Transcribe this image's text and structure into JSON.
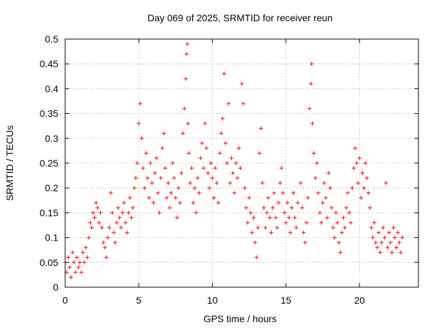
{
  "chart_data": {
    "type": "scatter",
    "title": "Day 069 of 2025, SRMTID for receiver reun",
    "xlabel": "GPS time / hours",
    "ylabel": "SRMTID / TECUs",
    "xlim": [
      0,
      24
    ],
    "ylim": [
      0,
      0.5
    ],
    "x_ticks": [
      0,
      5,
      10,
      15,
      20
    ],
    "x_tick_labels": [
      "0",
      "5",
      "10",
      "15",
      "20"
    ],
    "y_ticks": [
      0,
      0.05,
      0.1,
      0.15,
      0.2,
      0.25,
      0.3,
      0.35,
      0.4,
      0.45,
      0.5
    ],
    "y_tick_labels": [
      "0",
      "0.05",
      "0.1",
      "0.15",
      "0.2",
      "0.25",
      "0.3",
      "0.35",
      "0.4",
      "0.45",
      "0.5"
    ],
    "grid": true,
    "marker": "+",
    "color": "#ff0000",
    "data_span_hours": [
      0,
      22.9
    ],
    "series": [
      {
        "name": "SRMTID",
        "points": [
          [
            0.0,
            0.05
          ],
          [
            0.1,
            0.03
          ],
          [
            0.2,
            0.06
          ],
          [
            0.3,
            0.04
          ],
          [
            0.4,
            0.02
          ],
          [
            0.5,
            0.07
          ],
          [
            0.6,
            0.05
          ],
          [
            0.7,
            0.03
          ],
          [
            0.8,
            0.06
          ],
          [
            0.9,
            0.04
          ],
          [
            1.0,
            0.05
          ],
          [
            1.1,
            0.03
          ],
          [
            1.2,
            0.07
          ],
          [
            1.3,
            0.05
          ],
          [
            1.4,
            0.08
          ],
          [
            1.5,
            0.06
          ],
          [
            1.6,
            0.1
          ],
          [
            1.7,
            0.13
          ],
          [
            1.8,
            0.12
          ],
          [
            1.9,
            0.15
          ],
          [
            2.0,
            0.14
          ],
          [
            2.1,
            0.17
          ],
          [
            2.2,
            0.16
          ],
          [
            2.3,
            0.13
          ],
          [
            2.4,
            0.15
          ],
          [
            2.5,
            0.12
          ],
          [
            2.6,
            0.09
          ],
          [
            2.7,
            0.08
          ],
          [
            2.8,
            0.06
          ],
          [
            2.9,
            0.1
          ],
          [
            3.0,
            0.12
          ],
          [
            3.1,
            0.19
          ],
          [
            3.2,
            0.15
          ],
          [
            3.3,
            0.11
          ],
          [
            3.4,
            0.09
          ],
          [
            3.5,
            0.13
          ],
          [
            3.6,
            0.16
          ],
          [
            3.7,
            0.14
          ],
          [
            3.8,
            0.12
          ],
          [
            3.9,
            0.15
          ],
          [
            4.0,
            0.17
          ],
          [
            4.1,
            0.13
          ],
          [
            4.2,
            0.11
          ],
          [
            4.3,
            0.15
          ],
          [
            4.4,
            0.18
          ],
          [
            4.5,
            0.14
          ],
          [
            4.6,
            0.16
          ],
          [
            4.7,
            0.2
          ],
          [
            4.8,
            0.22
          ],
          [
            4.9,
            0.25
          ],
          [
            5.0,
            0.33
          ],
          [
            5.1,
            0.37
          ],
          [
            5.2,
            0.3
          ],
          [
            5.3,
            0.24
          ],
          [
            5.4,
            0.2
          ],
          [
            5.5,
            0.27
          ],
          [
            5.6,
            0.22
          ],
          [
            5.7,
            0.18
          ],
          [
            5.8,
            0.25
          ],
          [
            5.9,
            0.21
          ],
          [
            6.0,
            0.17
          ],
          [
            6.1,
            0.23
          ],
          [
            6.2,
            0.26
          ],
          [
            6.3,
            0.19
          ],
          [
            6.4,
            0.15
          ],
          [
            6.5,
            0.22
          ],
          [
            6.6,
            0.28
          ],
          [
            6.7,
            0.31
          ],
          [
            6.8,
            0.24
          ],
          [
            6.9,
            0.18
          ],
          [
            7.0,
            0.21
          ],
          [
            7.1,
            0.16
          ],
          [
            7.2,
            0.19
          ],
          [
            7.3,
            0.25
          ],
          [
            7.4,
            0.22
          ],
          [
            7.5,
            0.18
          ],
          [
            7.6,
            0.14
          ],
          [
            7.7,
            0.2
          ],
          [
            7.8,
            0.17
          ],
          [
            7.9,
            0.23
          ],
          [
            8.0,
            0.31
          ],
          [
            8.1,
            0.36
          ],
          [
            8.2,
            0.42
          ],
          [
            8.25,
            0.47
          ],
          [
            8.3,
            0.49
          ],
          [
            8.35,
            0.33
          ],
          [
            8.4,
            0.27
          ],
          [
            8.5,
            0.21
          ],
          [
            8.6,
            0.24
          ],
          [
            8.7,
            0.17
          ],
          [
            8.8,
            0.2
          ],
          [
            8.9,
            0.15
          ],
          [
            9.0,
            0.22
          ],
          [
            9.1,
            0.19
          ],
          [
            9.2,
            0.26
          ],
          [
            9.3,
            0.29
          ],
          [
            9.4,
            0.24
          ],
          [
            9.5,
            0.33
          ],
          [
            9.6,
            0.28
          ],
          [
            9.7,
            0.23
          ],
          [
            9.8,
            0.2
          ],
          [
            9.9,
            0.25
          ],
          [
            10.0,
            0.22
          ],
          [
            10.1,
            0.18
          ],
          [
            10.2,
            0.24
          ],
          [
            10.3,
            0.21
          ],
          [
            10.4,
            0.17
          ],
          [
            10.5,
            0.27
          ],
          [
            10.6,
            0.31
          ],
          [
            10.7,
            0.34
          ],
          [
            10.8,
            0.43
          ],
          [
            10.9,
            0.29
          ],
          [
            11.0,
            0.25
          ],
          [
            11.1,
            0.37
          ],
          [
            11.2,
            0.21
          ],
          [
            11.3,
            0.26
          ],
          [
            11.4,
            0.23
          ],
          [
            11.5,
            0.19
          ],
          [
            11.6,
            0.25
          ],
          [
            11.7,
            0.22
          ],
          [
            11.8,
            0.28
          ],
          [
            11.9,
            0.24
          ],
          [
            12.0,
            0.41
          ],
          [
            12.1,
            0.37
          ],
          [
            12.2,
            0.2
          ],
          [
            12.3,
            0.16
          ],
          [
            12.4,
            0.13
          ],
          [
            12.5,
            0.18
          ],
          [
            12.6,
            0.15
          ],
          [
            12.7,
            0.11
          ],
          [
            12.8,
            0.14
          ],
          [
            12.9,
            0.09
          ],
          [
            13.0,
            0.06
          ],
          [
            13.1,
            0.12
          ],
          [
            13.2,
            0.27
          ],
          [
            13.3,
            0.32
          ],
          [
            13.4,
            0.21
          ],
          [
            13.5,
            0.16
          ],
          [
            13.6,
            0.12
          ],
          [
            13.7,
            0.15
          ],
          [
            13.8,
            0.18
          ],
          [
            13.9,
            0.14
          ],
          [
            14.0,
            0.11
          ],
          [
            14.1,
            0.16
          ],
          [
            14.2,
            0.19
          ],
          [
            14.3,
            0.14
          ],
          [
            14.4,
            0.12
          ],
          [
            14.5,
            0.17
          ],
          [
            14.6,
            0.21
          ],
          [
            14.7,
            0.24
          ],
          [
            14.8,
            0.19
          ],
          [
            14.9,
            0.15
          ],
          [
            15.0,
            0.13
          ],
          [
            15.1,
            0.17
          ],
          [
            15.2,
            0.14
          ],
          [
            15.3,
            0.11
          ],
          [
            15.4,
            0.16
          ],
          [
            15.5,
            0.19
          ],
          [
            15.6,
            0.14
          ],
          [
            15.7,
            0.12
          ],
          [
            15.8,
            0.17
          ],
          [
            16.0,
            0.21
          ],
          [
            16.1,
            0.16
          ],
          [
            16.2,
            0.11
          ],
          [
            16.3,
            0.09
          ],
          [
            16.4,
            0.13
          ],
          [
            16.5,
            0.18
          ],
          [
            16.6,
            0.36
          ],
          [
            16.7,
            0.41
          ],
          [
            16.75,
            0.45
          ],
          [
            16.8,
            0.33
          ],
          [
            16.9,
            0.27
          ],
          [
            17.0,
            0.22
          ],
          [
            17.1,
            0.25
          ],
          [
            17.2,
            0.19
          ],
          [
            17.3,
            0.15
          ],
          [
            17.4,
            0.13
          ],
          [
            17.5,
            0.17
          ],
          [
            17.6,
            0.21
          ],
          [
            17.7,
            0.18
          ],
          [
            17.8,
            0.14
          ],
          [
            17.9,
            0.23
          ],
          [
            18.0,
            0.2
          ],
          [
            18.1,
            0.16
          ],
          [
            18.2,
            0.12
          ],
          [
            18.3,
            0.1
          ],
          [
            18.4,
            0.15
          ],
          [
            18.5,
            0.13
          ],
          [
            18.6,
            0.09
          ],
          [
            18.7,
            0.07
          ],
          [
            18.8,
            0.11
          ],
          [
            18.9,
            0.14
          ],
          [
            19.0,
            0.12
          ],
          [
            19.1,
            0.16
          ],
          [
            19.2,
            0.19
          ],
          [
            19.3,
            0.15
          ],
          [
            19.4,
            0.13
          ],
          [
            19.5,
            0.2
          ],
          [
            19.6,
            0.24
          ],
          [
            19.7,
            0.28
          ],
          [
            19.8,
            0.25
          ],
          [
            19.9,
            0.21
          ],
          [
            20.0,
            0.26
          ],
          [
            20.1,
            0.18
          ],
          [
            20.2,
            0.23
          ],
          [
            20.3,
            0.2
          ],
          [
            20.4,
            0.25
          ],
          [
            20.5,
            0.22
          ],
          [
            20.6,
            0.19
          ],
          [
            20.7,
            0.16
          ],
          [
            20.8,
            0.12
          ],
          [
            20.9,
            0.1
          ],
          [
            21.0,
            0.13
          ],
          [
            21.1,
            0.09
          ],
          [
            21.2,
            0.08
          ],
          [
            21.3,
            0.11
          ],
          [
            21.4,
            0.07
          ],
          [
            21.5,
            0.09
          ],
          [
            21.6,
            0.12
          ],
          [
            21.7,
            0.1
          ],
          [
            21.8,
            0.21
          ],
          [
            21.9,
            0.08
          ],
          [
            22.0,
            0.11
          ],
          [
            22.1,
            0.09
          ],
          [
            22.2,
            0.07
          ],
          [
            22.3,
            0.12
          ],
          [
            22.4,
            0.1
          ],
          [
            22.5,
            0.08
          ],
          [
            22.6,
            0.11
          ],
          [
            22.7,
            0.09
          ],
          [
            22.8,
            0.07
          ],
          [
            22.9,
            0.1
          ]
        ]
      }
    ]
  }
}
